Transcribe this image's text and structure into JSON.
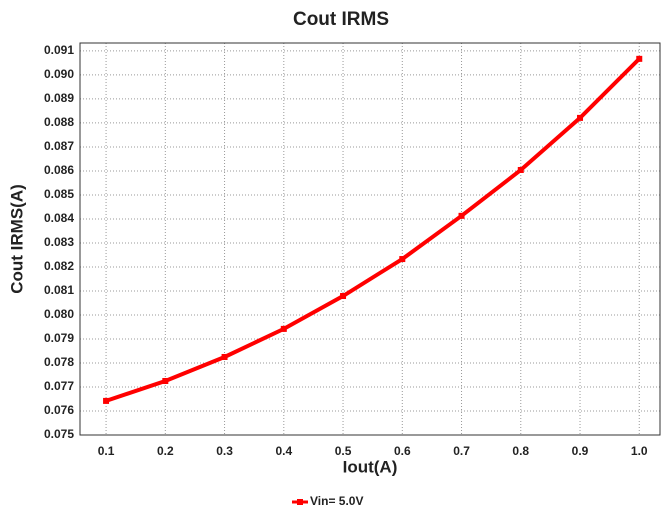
{
  "chart_data": {
    "type": "line",
    "title": "Cout IRMS",
    "x_label": "Iout(A)",
    "y_label": "Cout IRMS(A)",
    "x": [
      0.1,
      0.2,
      0.3,
      0.4,
      0.5,
      0.6,
      0.7,
      0.8,
      0.9,
      1.0
    ],
    "series": [
      {
        "name": "Vin= 5.0V",
        "color": "#ff0000",
        "values": [
          0.07642,
          0.07725,
          0.07825,
          0.07942,
          0.08079,
          0.08233,
          0.08413,
          0.08604,
          0.08821,
          0.09067
        ]
      }
    ],
    "xlim": [
      0.056,
      1.035
    ],
    "ylim": [
      0.075,
      0.09133
    ],
    "xticks": [
      0.1,
      0.2,
      0.3,
      0.4,
      0.5,
      0.6,
      0.7,
      0.8,
      0.9,
      {
        "value": 1.0,
        "label": "1.0"
      }
    ],
    "yticks": [
      0.075,
      0.076,
      0.077,
      0.078,
      0.079,
      {
        "value": 0.08,
        "label": "0.080"
      },
      0.081,
      0.082,
      0.083,
      0.084,
      0.085,
      0.086,
      0.087,
      0.088,
      0.089,
      {
        "value": 0.09,
        "label": "0.090"
      },
      0.091
    ],
    "grid": true,
    "legend": "bottom"
  }
}
